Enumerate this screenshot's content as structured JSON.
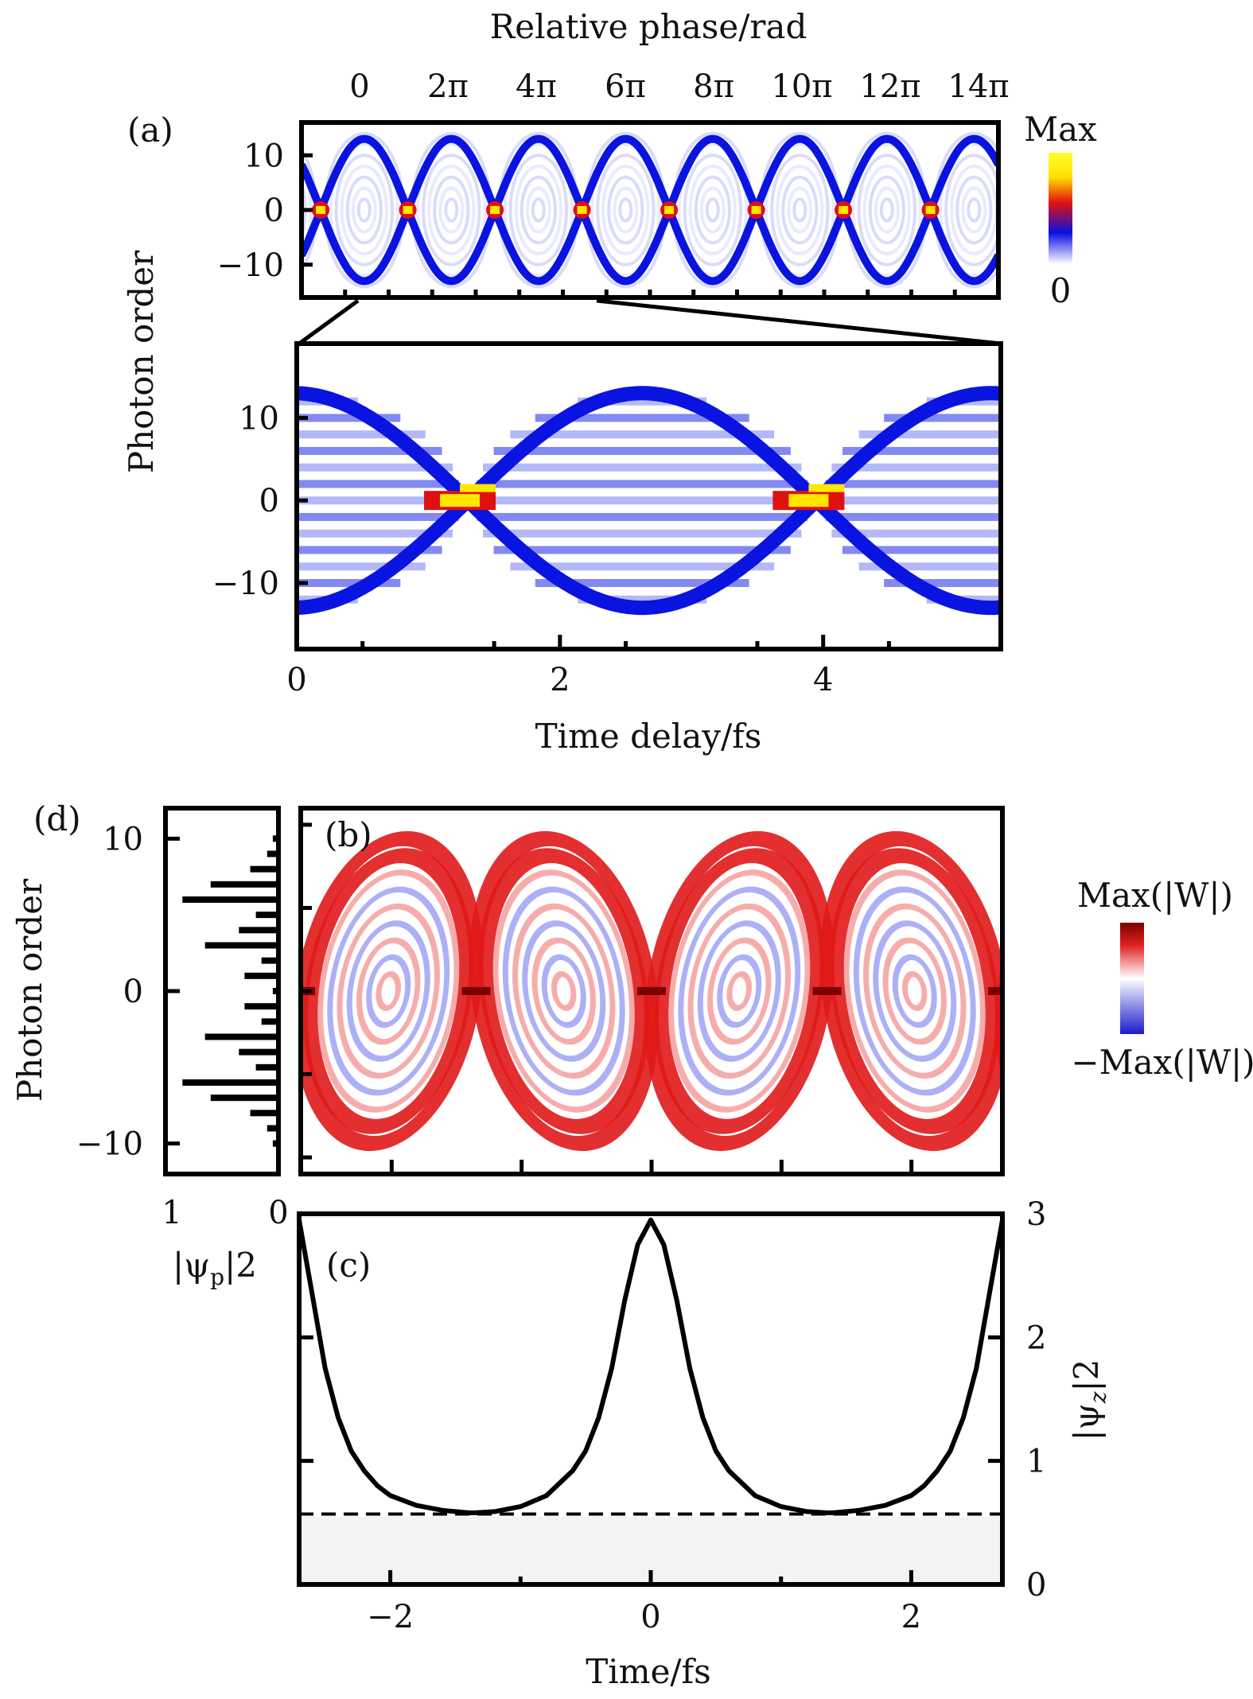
{
  "chart_data": [
    {
      "panel": "(a)",
      "type": "heatmap",
      "top_axis_label": "Relative phase/rad",
      "top_ticks": [
        "0",
        "2π",
        "4π",
        "6π",
        "8π",
        "10π",
        "12π",
        "14π"
      ],
      "ylabel": "Photon order",
      "yticks": [
        "10",
        "0",
        "−10"
      ],
      "ylim": [
        -16,
        16
      ],
      "xlim": [
        0,
        16.2
      ],
      "periods_shown": 8,
      "colorbar": {
        "max_label": "Max",
        "min_label": "0",
        "colors": [
          "#ffffff",
          "#0a10e0",
          "#e01010",
          "#ffe000",
          "#ffff30"
        ]
      },
      "description_colors": {
        "band": "#1020e8",
        "hotspot": "#ffe600"
      }
    },
    {
      "panel": "(a) zoom",
      "type": "heatmap",
      "xlabel": "Time delay/fs",
      "xticks": [
        "0",
        "2",
        "4"
      ],
      "xlim": [
        0,
        5.35
      ],
      "ylabel": "Photon order",
      "yticks": [
        "10",
        "0",
        "−10"
      ],
      "ylim": [
        -18,
        19
      ],
      "hotspot_times": [
        1.3,
        3.95
      ],
      "band_amplitude": 13
    },
    {
      "panel": "(b)",
      "type": "heatmap",
      "xlim": [
        -2.7,
        2.7
      ],
      "ylim": [
        -11,
        11
      ],
      "period": 2.7,
      "colorbar": {
        "max_label": "Max(|W|)",
        "min_label": "−Max(|W|)",
        "colors": [
          "#1a1acc",
          "#ffffff",
          "#e02020",
          "#7a0000"
        ]
      }
    },
    {
      "panel": "(d)",
      "type": "bar",
      "ylabel": "Photon order",
      "yticks": [
        "10",
        "0",
        "−10"
      ],
      "ylim": [
        -12,
        12
      ],
      "xticks": [
        "1",
        "0"
      ],
      "xlabel": "|ψ",
      "xlabel_sub": "p",
      "xlabel_sup": "|2",
      "orders": [
        -10,
        -9,
        -8,
        -7,
        -6,
        -5,
        -4,
        -3,
        -2,
        -1,
        0,
        1,
        2,
        3,
        4,
        5,
        6,
        7,
        8,
        9,
        10
      ],
      "values": [
        0.05,
        0.1,
        0.25,
        0.6,
        0.85,
        0.2,
        0.35,
        0.65,
        0.15,
        0.3,
        0.05,
        0.3,
        0.15,
        0.65,
        0.35,
        0.2,
        0.85,
        0.6,
        0.25,
        0.1,
        0.05
      ]
    },
    {
      "panel": "(c)",
      "type": "line",
      "xlabel": "Time/fs",
      "xticks": [
        "−2",
        "0",
        "2"
      ],
      "xlim": [
        -2.7,
        2.7
      ],
      "ylabel": "|ψ",
      "ylabel_sub": "z",
      "ylabel_sup": "|2",
      "yticks": [
        "0",
        "1",
        "2",
        "3"
      ],
      "ylim": [
        0,
        3
      ],
      "x": [
        -2.7,
        -2.6,
        -2.5,
        -2.4,
        -2.3,
        -2.2,
        -2.1,
        -2.0,
        -1.8,
        -1.6,
        -1.4,
        -1.35,
        -1.2,
        -1.0,
        -0.8,
        -0.6,
        -0.5,
        -0.4,
        -0.3,
        -0.2,
        -0.1,
        0.0,
        0.1,
        0.2,
        0.3,
        0.4,
        0.5,
        0.6,
        0.8,
        1.0,
        1.2,
        1.35,
        1.4,
        1.6,
        1.8,
        2.0,
        2.1,
        2.2,
        2.3,
        2.4,
        2.5,
        2.6,
        2.7
      ],
      "y": [
        2.95,
        2.35,
        1.75,
        1.35,
        1.08,
        0.92,
        0.8,
        0.72,
        0.64,
        0.6,
        0.58,
        0.58,
        0.59,
        0.63,
        0.72,
        0.92,
        1.08,
        1.35,
        1.75,
        2.3,
        2.75,
        2.95,
        2.75,
        2.3,
        1.75,
        1.35,
        1.08,
        0.92,
        0.72,
        0.63,
        0.59,
        0.58,
        0.58,
        0.6,
        0.64,
        0.72,
        0.8,
        0.92,
        1.08,
        1.35,
        1.75,
        2.35,
        2.95
      ],
      "threshold": 0.57,
      "threshold_style": "dashed"
    }
  ]
}
